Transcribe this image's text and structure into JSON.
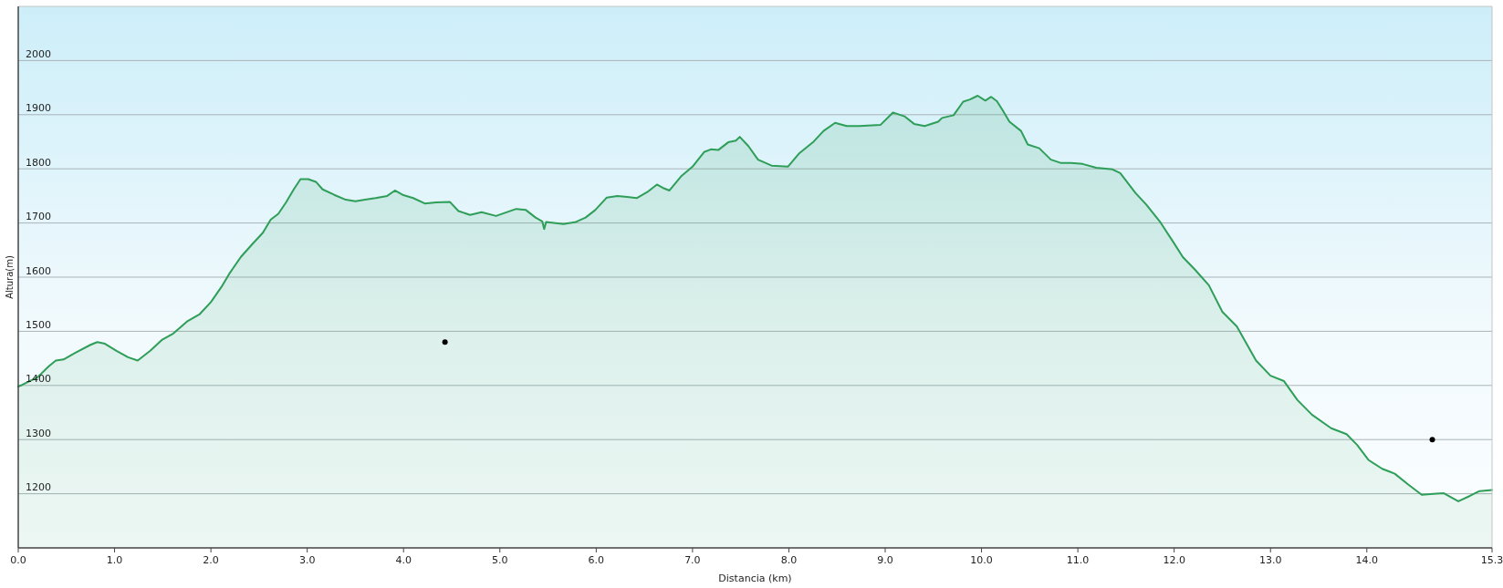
{
  "chart_data": {
    "type": "area",
    "xlabel": "Distancia (km)",
    "ylabel": "Altura(m)",
    "xlim": [
      0,
      15.3
    ],
    "ylim": [
      1100,
      2100
    ],
    "xticks": [
      {
        "value": 0,
        "label": "0.0"
      },
      {
        "value": 1,
        "label": "1.0"
      },
      {
        "value": 2,
        "label": "2.0"
      },
      {
        "value": 3,
        "label": "3.0"
      },
      {
        "value": 4,
        "label": "4.0"
      },
      {
        "value": 5,
        "label": "5.0"
      },
      {
        "value": 6,
        "label": "6.0"
      },
      {
        "value": 7,
        "label": "7.0"
      },
      {
        "value": 8,
        "label": "8.0"
      },
      {
        "value": 9,
        "label": "9.0"
      },
      {
        "value": 10,
        "label": "10.0"
      },
      {
        "value": 11,
        "label": "11.0"
      },
      {
        "value": 12,
        "label": "12.0"
      },
      {
        "value": 13,
        "label": "13.0"
      },
      {
        "value": 14,
        "label": "14.0"
      },
      {
        "value": 15.3,
        "label": "15.3"
      }
    ],
    "yticks": [
      1200,
      1300,
      1400,
      1500,
      1600,
      1700,
      1800,
      1900,
      2000
    ],
    "grid": "y",
    "series": [
      {
        "color": "#2e9e58",
        "marker": "none",
        "x": [
          0,
          0.04,
          0.2,
          0.32,
          0.39,
          0.47,
          0.59,
          0.75,
          0.82,
          0.9,
          1.02,
          1.14,
          1.24,
          1.37,
          1.49,
          1.61,
          1.76,
          1.88,
          2.0,
          2.11,
          2.19,
          2.31,
          2.43,
          2.54,
          2.62,
          2.7,
          2.78,
          2.86,
          2.93,
          3.01,
          3.09,
          3.16,
          3.28,
          3.4,
          3.5,
          3.6,
          3.71,
          3.83,
          3.91,
          3.99,
          4.1,
          4.22,
          4.34,
          4.48,
          4.57,
          4.69,
          4.81,
          4.96,
          5.17,
          5.27,
          5.37,
          5.44,
          5.46,
          5.48,
          5.52,
          5.66,
          5.79,
          5.89,
          5.99,
          6.11,
          6.22,
          6.32,
          6.42,
          6.53,
          6.63,
          6.69,
          6.76,
          6.88,
          7.0,
          7.12,
          7.19,
          7.27,
          7.37,
          7.45,
          7.49,
          7.58,
          7.68,
          7.82,
          7.99,
          8.11,
          8.25,
          8.36,
          8.48,
          8.6,
          8.73,
          8.95,
          9.08,
          9.2,
          9.3,
          9.41,
          9.55,
          9.59,
          9.71,
          9.81,
          9.88,
          9.96,
          10.04,
          10.1,
          10.16,
          10.22,
          10.29,
          10.41,
          10.48,
          10.6,
          10.72,
          10.82,
          10.93,
          11.05,
          11.19,
          11.36,
          11.44,
          11.6,
          11.71,
          11.85,
          11.99,
          12.09,
          12.22,
          12.36,
          12.5,
          12.65,
          12.85,
          13.0,
          13.14,
          13.28,
          13.43,
          13.63,
          13.79,
          13.9,
          14.02,
          14.16,
          14.29,
          14.43,
          14.57,
          14.72,
          14.8,
          14.95,
          15.07,
          15.17,
          15.3
        ],
        "values": [
          1398,
          1401,
          1415,
          1436,
          1446,
          1448,
          1460,
          1475,
          1480,
          1477,
          1464,
          1452,
          1446,
          1464,
          1484,
          1496,
          1519,
          1531,
          1554,
          1582,
          1606,
          1637,
          1661,
          1682,
          1706,
          1717,
          1738,
          1762,
          1781,
          1781,
          1776,
          1762,
          1752,
          1743,
          1740,
          1743,
          1746,
          1750,
          1760,
          1752,
          1746,
          1736,
          1738,
          1739,
          1722,
          1715,
          1720,
          1713,
          1726,
          1724,
          1710,
          1703,
          1689,
          1702,
          1701,
          1698,
          1702,
          1710,
          1724,
          1747,
          1750,
          1748,
          1746,
          1757,
          1771,
          1765,
          1760,
          1786,
          1804,
          1831,
          1836,
          1835,
          1849,
          1852,
          1859,
          1842,
          1817,
          1806,
          1804,
          1829,
          1849,
          1870,
          1885,
          1879,
          1879,
          1881,
          1904,
          1897,
          1883,
          1879,
          1887,
          1894,
          1899,
          1924,
          1928,
          1935,
          1926,
          1933,
          1925,
          1908,
          1887,
          1870,
          1845,
          1838,
          1817,
          1811,
          1811,
          1809,
          1802,
          1799,
          1792,
          1755,
          1734,
          1703,
          1665,
          1637,
          1613,
          1585,
          1536,
          1509,
          1446,
          1418,
          1408,
          1373,
          1346,
          1321,
          1310,
          1290,
          1262,
          1246,
          1237,
          1217,
          1198,
          1200,
          1201,
          1186,
          1196,
          1205,
          1207
        ]
      },
      {
        "type": "scatter",
        "color": "#000000",
        "marker": "circle",
        "x": [
          4.43,
          14.68
        ],
        "values": [
          1480,
          1300
        ]
      }
    ]
  }
}
